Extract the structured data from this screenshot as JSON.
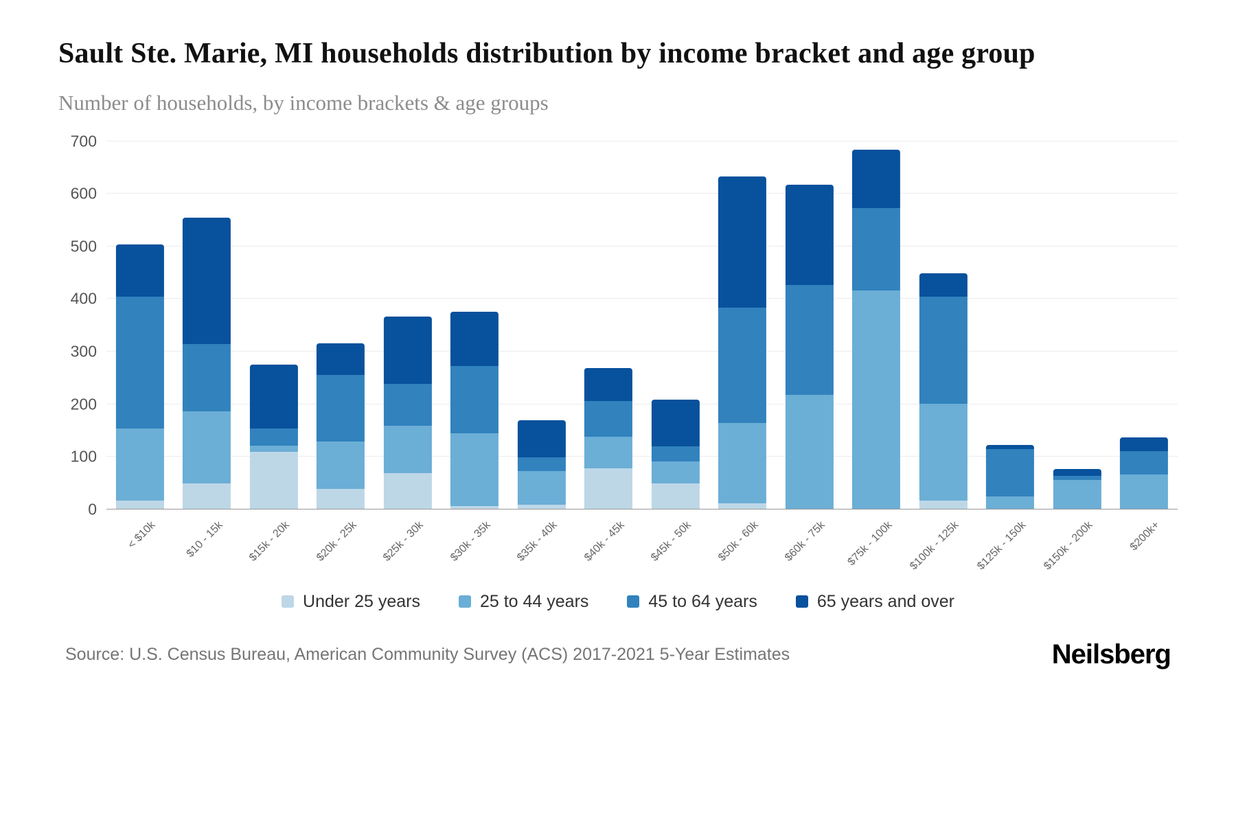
{
  "page": {
    "title": "Sault Ste. Marie, MI households distribution by income bracket and age group",
    "subtitle": "Number of households, by income brackets & age groups",
    "source": "Source: U.S. Census Bureau, American Community Survey (ACS) 2017-2021 5-Year Estimates",
    "brand": "Neilsberg"
  },
  "chart_data": {
    "type": "bar",
    "stacked": true,
    "title": "Sault Ste. Marie, MI households distribution by income bracket and age group",
    "subtitle": "Number of households, by income brackets & age groups",
    "xlabel": "",
    "ylabel": "Number of households",
    "ylim": [
      0,
      700
    ],
    "ytick_step": 100,
    "grid": true,
    "legend_position": "bottom",
    "categories": [
      "< $10k",
      "$10 - 15k",
      "$15k - 20k",
      "$20k - 25k",
      "$25k - 30k",
      "$30k - 35k",
      "$35k - 40k",
      "$40k - 45k",
      "$45k - 50k",
      "$50k - 60k",
      "$60k - 75k",
      "$75k - 100k",
      "$100k - 125k",
      "$125k - 150k",
      "$150k - 200k",
      "$200k+"
    ],
    "series": [
      {
        "name": "Under 25 years",
        "color": "#bdd7e7",
        "values": [
          15,
          48,
          108,
          38,
          68,
          5,
          8,
          77,
          48,
          10,
          0,
          0,
          15,
          0,
          0,
          0
        ]
      },
      {
        "name": "25 to 44 years",
        "color": "#6baed6",
        "values": [
          137,
          137,
          12,
          90,
          90,
          138,
          64,
          60,
          42,
          153,
          216,
          415,
          185,
          23,
          55,
          65
        ]
      },
      {
        "name": "45 to 64 years",
        "color": "#3182bd",
        "values": [
          251,
          128,
          32,
          127,
          80,
          129,
          25,
          68,
          28,
          220,
          209,
          157,
          203,
          90,
          8,
          45
        ]
      },
      {
        "name": "65 years and over",
        "color": "#08519c",
        "values": [
          100,
          240,
          122,
          60,
          127,
          103,
          71,
          62,
          89,
          249,
          191,
          111,
          45,
          8,
          12,
          25
        ]
      }
    ]
  }
}
